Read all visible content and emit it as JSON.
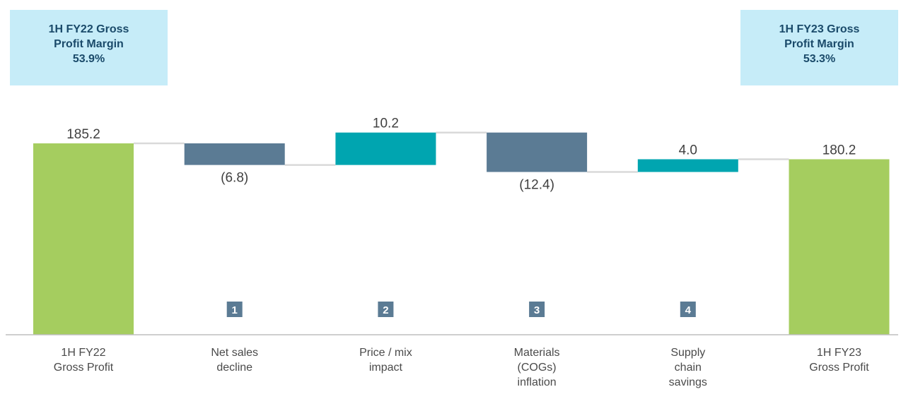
{
  "boxes": {
    "left": {
      "lines": [
        "1H FY22 Gross",
        "Profit Margin",
        "53.9%"
      ]
    },
    "right": {
      "lines": [
        "1H FY23 Gross",
        "Profit Margin",
        "53.3%"
      ]
    }
  },
  "colors": {
    "total": "#a5cd5f",
    "decrease": "#5b7b94",
    "increase": "#00a5b0",
    "badge": "#5b7b94",
    "box": "#c6ecf8",
    "connector": "#d9d9d9",
    "axis": "#bfbfbf"
  },
  "chart_data": {
    "type": "waterfall",
    "title": "",
    "xlabel": "",
    "ylabel": "",
    "grid": false,
    "categories": [
      "1H FY22\nGross Profit",
      "Net sales\ndecline",
      "Price / mix\nimpact",
      "Materials\n(COGs)\ninflation",
      "Supply\nchain\nsavings",
      "1H FY23\nGross Profit"
    ],
    "values": [
      185.2,
      -6.8,
      10.2,
      -12.4,
      4.0,
      180.2
    ],
    "kinds": [
      "total",
      "decrease",
      "increase",
      "decrease",
      "increase",
      "total"
    ],
    "labels": [
      "185.2",
      "(6.8)",
      "10.2",
      "(12.4)",
      "4.0",
      "180.2"
    ],
    "badges": [
      "",
      "1",
      "2",
      "3",
      "4",
      ""
    ],
    "ylim": [
      125,
      200
    ]
  }
}
